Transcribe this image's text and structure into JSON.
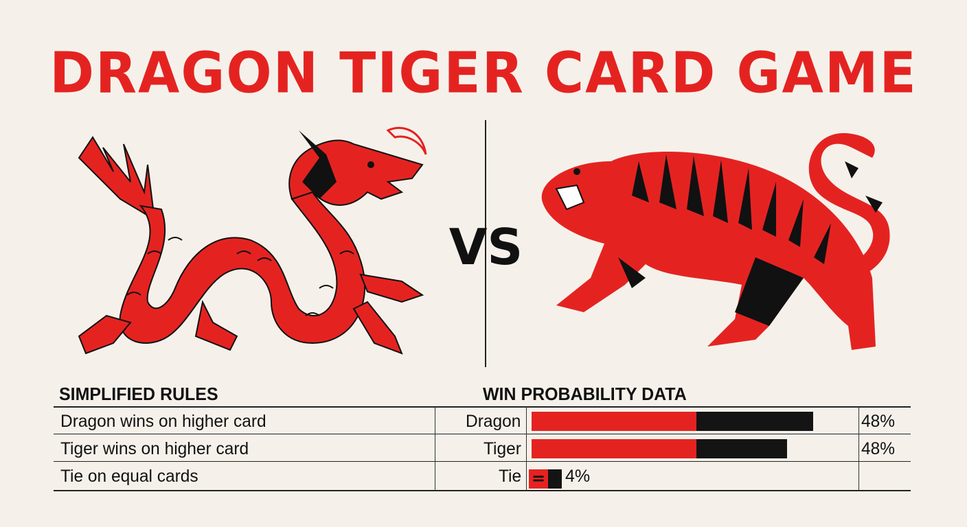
{
  "title": "DRAGON TIGER CARD GAME",
  "vs_label": "VS",
  "colors": {
    "accent_red": "#e42321",
    "ink": "#111111",
    "paper": "#f5f1ea"
  },
  "illustrations": {
    "left": "dragon-icon",
    "right": "tiger-icon"
  },
  "rules": {
    "heading": "SIMPLIFIED RULES",
    "items": [
      "Dragon wins on higher card",
      "Tiger wins on higher card",
      "Tie on equal cards"
    ]
  },
  "probability": {
    "heading": "WIN PROBABILITY DATA",
    "rows": [
      {
        "label": "Dragon",
        "value_text": "48%",
        "value": 48
      },
      {
        "label": "Tiger",
        "value_text": "48%",
        "value": 48
      },
      {
        "label": "Tie",
        "value_text": "4%",
        "value": 4,
        "symbol": "="
      }
    ]
  },
  "chart_data": {
    "type": "bar",
    "categories": [
      "Dragon",
      "Tiger",
      "Tie"
    ],
    "values": [
      48,
      48,
      4
    ],
    "title": "WIN PROBABILITY DATA"
  }
}
